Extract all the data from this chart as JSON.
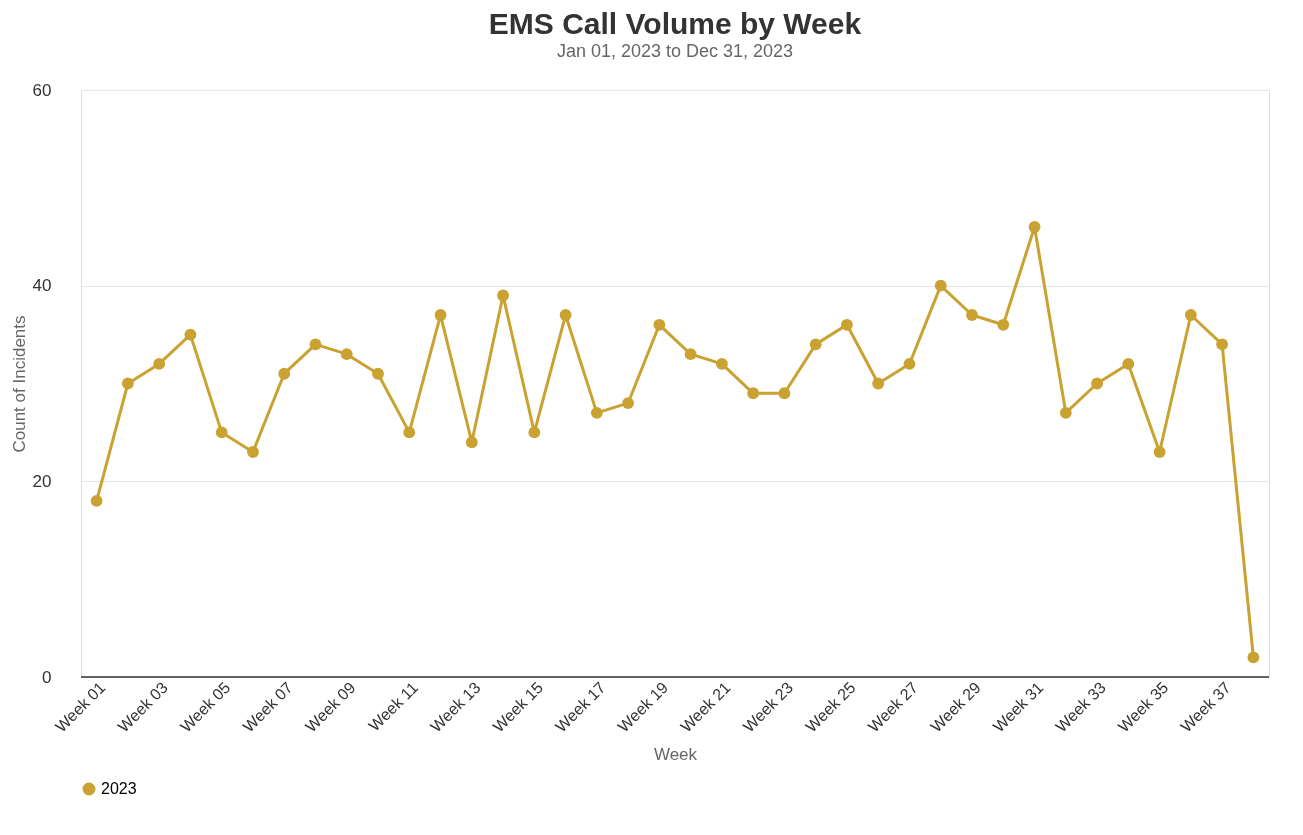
{
  "chart_data": {
    "type": "line",
    "title": "EMS Call Volume by Week",
    "subtitle": "Jan 01, 2023 to Dec 31, 2023",
    "xlabel": "Week",
    "ylabel": "Count of Incidents",
    "categories": [
      "Week 01",
      null,
      "Week 03",
      null,
      "Week 05",
      null,
      "Week 07",
      null,
      "Week 09",
      null,
      "Week 11",
      null,
      "Week 13",
      null,
      "Week 15",
      null,
      "Week 17",
      null,
      "Week 19",
      null,
      "Week 21",
      null,
      "Week 23",
      null,
      "Week 25",
      null,
      "Week 27",
      null,
      "Week 29",
      null,
      "Week 31",
      null,
      "Week 33",
      null,
      "Week 35",
      null,
      "Week 37",
      null
    ],
    "series": [
      {
        "name": "2023",
        "color": "#c9a232",
        "values": [
          18,
          30,
          32,
          35,
          25,
          23,
          31,
          34,
          33,
          31,
          25,
          37,
          24,
          39,
          25,
          37,
          27,
          28,
          36,
          33,
          32,
          29,
          29,
          34,
          36,
          30,
          32,
          40,
          37,
          36,
          46,
          27,
          30,
          32,
          23,
          37,
          34,
          2
        ]
      }
    ],
    "ylim": [
      0,
      60
    ],
    "yticks": [
      0,
      20,
      40,
      60
    ],
    "grid": "y",
    "legend": "bottom",
    "marker": "circle",
    "line_style": "solid"
  }
}
